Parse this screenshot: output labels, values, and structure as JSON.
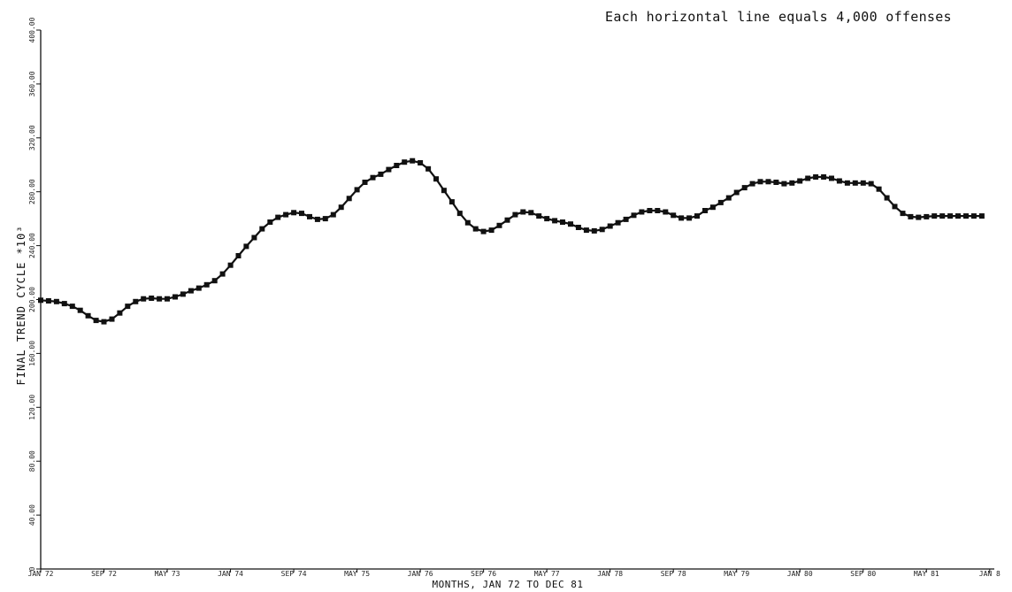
{
  "chart_data": {
    "type": "line",
    "annotation": "Each horizontal line equals 4,000 offenses",
    "ylabel": "FINAL TREND CYCLE *10³",
    "xlabel": "MONTHS, JAN 72 TO DEC 81",
    "ylim": [
      0,
      400
    ],
    "y_ticks": [
      "0",
      "40.00",
      "80.00",
      "120.00",
      "160.00",
      "200.00",
      "240.00",
      "280.00",
      "320.00",
      "360.00",
      "400.00"
    ],
    "x_tick_labels": [
      "JAN 72",
      "SEP 72",
      "MAY 73",
      "JAN 74",
      "SEP 74",
      "MAY 75",
      "JAN 76",
      "SEP 76",
      "MAY 77",
      "JAN 78",
      "SEP 78",
      "MAY 79",
      "JAN 80",
      "SEP 80",
      "MAY 81",
      "JAN 8"
    ],
    "grid": false,
    "marker": "square",
    "color": "#111111",
    "series": [
      {
        "values": [
          199.5,
          199,
          198.5,
          197,
          195,
          192,
          188,
          184.5,
          183.5,
          185.5,
          190,
          195,
          198.5,
          200.5,
          201,
          200.5,
          200.5,
          202,
          204,
          206.5,
          208.5,
          211,
          214,
          219,
          225.5,
          232.5,
          239.5,
          246,
          252.5,
          257.5,
          261,
          263,
          264.5,
          264,
          261.5,
          259.5,
          260,
          263,
          268.5,
          275,
          281.5,
          287,
          290.5,
          293,
          296.5,
          299.5,
          302,
          303,
          301.5,
          297,
          289.5,
          281,
          272.5,
          264,
          257,
          252.5,
          250.5,
          251.5,
          255,
          259,
          263,
          265,
          264.5,
          262,
          260,
          258.5,
          257.5,
          256,
          253.5,
          251.5,
          251,
          252,
          254.5,
          257,
          259.5,
          262.5,
          265,
          266,
          266,
          265,
          262.5,
          260.5,
          260.5,
          262,
          266,
          268.5,
          272,
          275.5,
          279.5,
          283,
          286,
          287.5,
          287.5,
          287,
          286,
          286.5,
          288,
          290,
          291,
          291,
          290,
          288,
          286.5,
          286.5,
          286.5,
          286,
          282,
          275.5,
          269,
          264,
          261.5,
          261,
          261.5,
          262,
          262,
          262,
          262,
          262,
          262,
          262
        ]
      }
    ]
  }
}
